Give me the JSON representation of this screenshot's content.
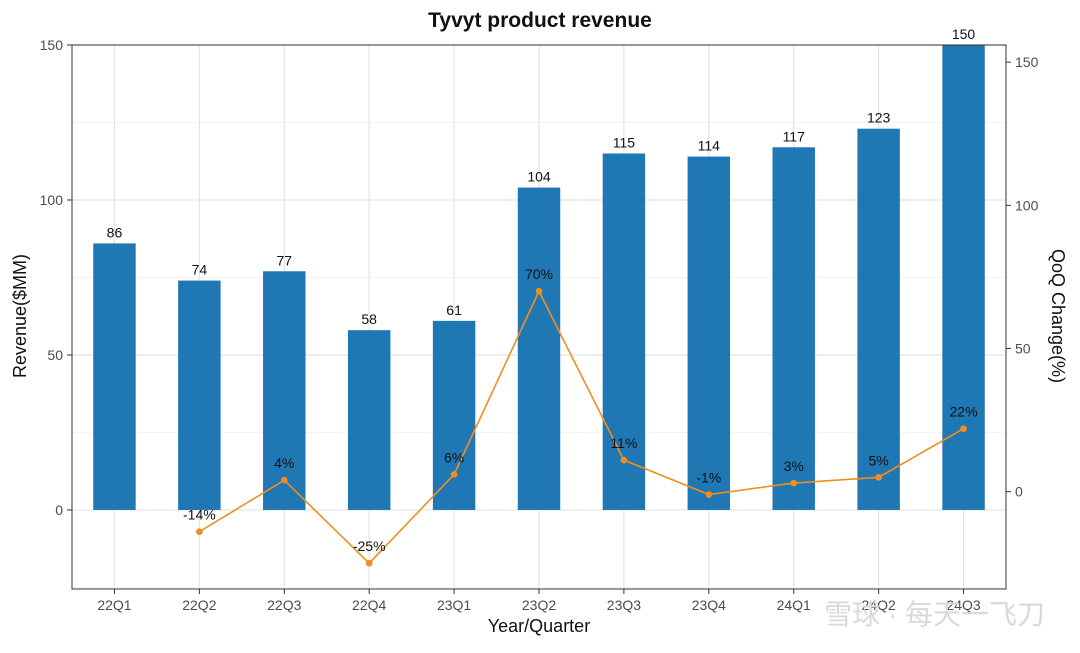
{
  "chart_data": {
    "type": "bar",
    "title": "Tyvyt product revenue",
    "xlabel": "Year/Quarter",
    "ylabel": "Revenue($MM)",
    "y2label": "QoQ Change(%)",
    "categories": [
      "22Q1",
      "22Q2",
      "22Q3",
      "22Q4",
      "23Q1",
      "23Q2",
      "23Q3",
      "23Q4",
      "24Q1",
      "24Q2",
      "24Q3"
    ],
    "series": [
      {
        "name": "Revenue",
        "axis": "left",
        "kind": "bar",
        "color": "#1f77b4",
        "values": [
          86,
          74,
          77,
          58,
          61,
          104,
          115,
          114,
          117,
          123,
          150
        ],
        "labels": [
          "86",
          "74",
          "77",
          "58",
          "61",
          "104",
          "115",
          "114",
          "117",
          "123",
          "150"
        ]
      },
      {
        "name": "QoQ Change",
        "axis": "right",
        "kind": "line",
        "color": "#f28e1c",
        "values": [
          null,
          -14,
          4,
          -25,
          6,
          70,
          11,
          -1,
          3,
          5,
          22
        ],
        "labels": [
          "",
          "-14%",
          "4%",
          "-25%",
          "6%",
          "70%",
          "11%",
          "-1%",
          "3%",
          "5%",
          "22%"
        ]
      }
    ],
    "ylim": [
      -25.5,
      150
    ],
    "y2lim": [
      -34,
      156
    ],
    "yticks": [
      0,
      50,
      100,
      150
    ],
    "y2ticks": [
      0,
      50,
      100,
      150
    ],
    "grid": true
  },
  "watermark": {
    "text": "雪球 · 每天一飞刀"
  }
}
